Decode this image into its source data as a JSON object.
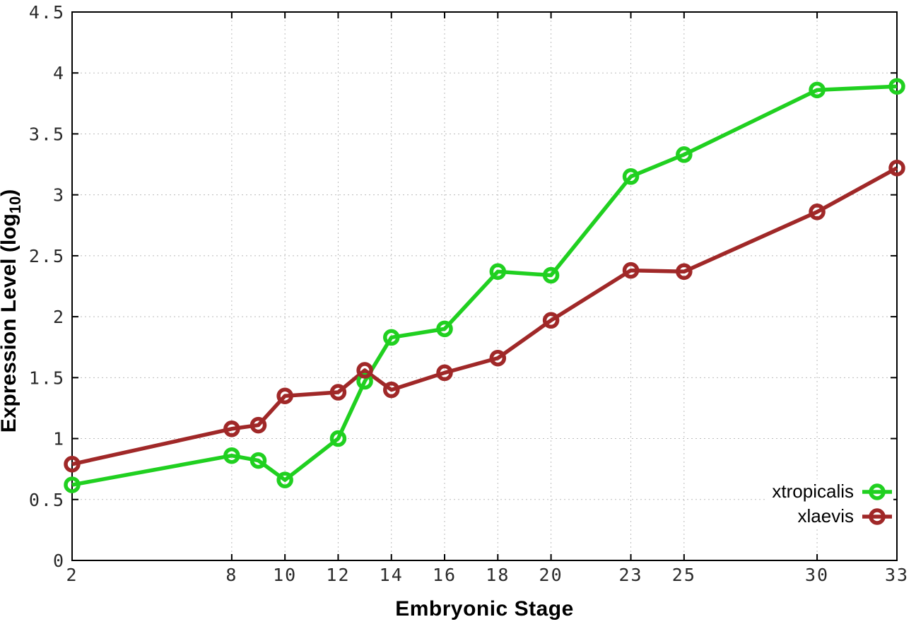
{
  "chart_data": {
    "type": "line",
    "x": [
      2,
      8,
      9,
      10,
      12,
      13,
      14,
      16,
      18,
      20,
      23,
      25,
      30,
      33
    ],
    "series": [
      {
        "name": "xtropicalis",
        "color": "#20d020",
        "values": [
          0.62,
          0.86,
          0.82,
          0.66,
          1.0,
          1.47,
          1.83,
          1.9,
          2.37,
          2.34,
          3.15,
          3.33,
          3.86,
          3.89
        ]
      },
      {
        "name": "xlaevis",
        "color": "#a02828",
        "values": [
          0.79,
          1.08,
          1.11,
          1.35,
          1.38,
          1.56,
          1.4,
          1.54,
          1.66,
          1.97,
          2.38,
          2.37,
          2.86,
          3.22
        ]
      }
    ],
    "title": "",
    "xlabel": "Embryonic Stage",
    "ylabel": "Expression Level (log10)",
    "ylabel_parts": {
      "main": "Expression Level (log",
      "sub": "10",
      "end": ")"
    },
    "xlim": [
      2,
      33
    ],
    "ylim": [
      0,
      4.5
    ],
    "xticks": [
      2,
      8,
      10,
      12,
      14,
      16,
      18,
      20,
      23,
      25,
      30,
      33
    ],
    "yticks": [
      0,
      0.5,
      1,
      1.5,
      2,
      2.5,
      3,
      3.5,
      4,
      4.5
    ],
    "grid": true,
    "grid_style": "dotted",
    "legend_position": "bottom-right",
    "marker": "open-circle",
    "colors": {
      "background": "#ffffff",
      "axis": "#000000",
      "grid": "#bbbbbb",
      "tick_label": "#2a2a2a"
    }
  }
}
